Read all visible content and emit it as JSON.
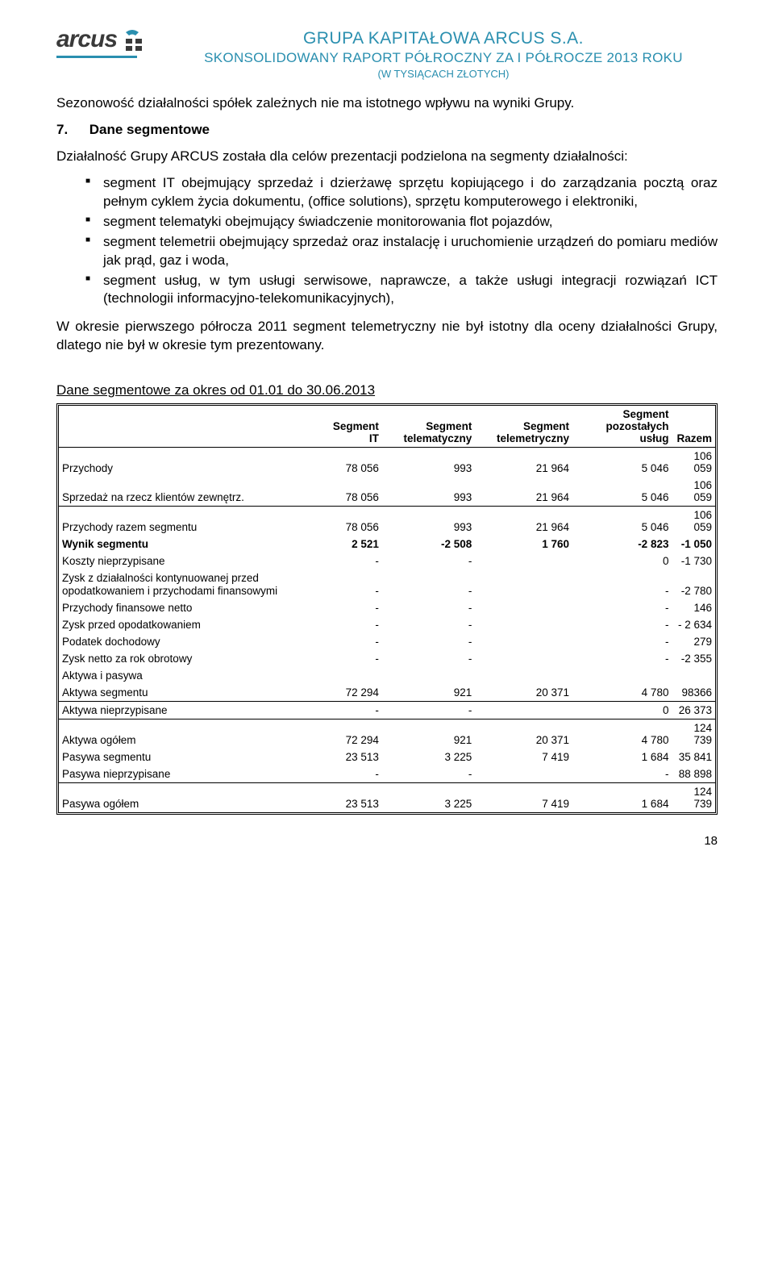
{
  "header": {
    "logo_text": "arcus",
    "line1": "GRUPA KAPITAŁOWA ARCUS S.A.",
    "line2": "SKONSOLIDOWANY RAPORT PÓŁROCZNY ZA I PÓŁROCZE 2013 ROKU",
    "line3": "(W TYSIĄCACH ZŁOTYCH)"
  },
  "intro_para": "Sezonowość działalności spółek zależnych nie ma istotnego wpływu na wyniki Grupy.",
  "section": {
    "num": "7.",
    "title": "Dane segmentowe",
    "lead": "Działalność Grupy ARCUS została dla celów prezentacji podzielona na segmenty działalności:",
    "bullets": [
      "segment IT obejmujący sprzedaż i dzierżawę sprzętu kopiującego i do zarządzania pocztą oraz pełnym cyklem życia dokumentu, (office solutions), sprzętu komputerowego i elektroniki,",
      "segment telematyki obejmujący świadczenie monitorowania flot pojazdów,",
      "segment telemetrii obejmujący sprzedaż oraz instalację i uruchomienie urządzeń do pomiaru mediów jak prąd, gaz i woda,",
      "segment usług, w tym usługi serwisowe, naprawcze, a także usługi integracji rozwiązań ICT (technologii informacyjno-telekomunikacyjnych),"
    ],
    "closing": "W okresie pierwszego półrocza 2011 segment telemetryczny nie był istotny dla oceny działalności Grupy, dlatego nie był w okresie tym prezentowany."
  },
  "table": {
    "title": "Dane segmentowe za okres od 01.01 do 30.06.2013",
    "columns": [
      "",
      "Segment IT",
      "Segment telematyczny",
      "Segment telemetryczny",
      "Segment pozostałych usług",
      "Razem"
    ],
    "rows": [
      {
        "label": "Przychody",
        "c": [
          "78 056",
          "993",
          "21 964",
          "5 046",
          "106 059"
        ],
        "border": false,
        "bold": false
      },
      {
        "label": "Sprzedaż na rzecz klientów zewnętrz.",
        "c": [
          "78 056",
          "993",
          "21 964",
          "5 046",
          "106 059"
        ],
        "border": true,
        "bold": false
      },
      {
        "label": "Przychody razem segmentu",
        "c": [
          "78 056",
          "993",
          "21 964",
          "5 046",
          "106 059"
        ],
        "border": false,
        "bold": false
      },
      {
        "label": "Wynik segmentu",
        "c": [
          "2 521",
          "-2 508",
          "1 760",
          "-2 823",
          "-1 050"
        ],
        "border": false,
        "bold": true
      },
      {
        "label": "Koszty nieprzypisane",
        "c": [
          "-",
          "-",
          "",
          "0",
          "-1 730"
        ],
        "border": false,
        "bold": false
      },
      {
        "label": "Zysk z działalności kontynuowanej przed opodatkowaniem i przychodami finansowymi",
        "c": [
          "-",
          "-",
          "",
          "-",
          "-2 780"
        ],
        "border": false,
        "bold": false,
        "multiline": true
      },
      {
        "label": "Przychody finansowe netto",
        "c": [
          "-",
          "-",
          "",
          "-",
          "146"
        ],
        "border": false,
        "bold": false
      },
      {
        "label": "Zysk przed opodatkowaniem",
        "c": [
          "-",
          "-",
          "",
          "-",
          "- 2 634"
        ],
        "border": false,
        "bold": false
      },
      {
        "label": "Podatek dochodowy",
        "c": [
          "-",
          "-",
          "",
          "-",
          "279"
        ],
        "border": false,
        "bold": false
      },
      {
        "label": "Zysk netto za rok obrotowy",
        "c": [
          "-",
          "-",
          "",
          "-",
          "-2 355"
        ],
        "border": false,
        "bold": false
      },
      {
        "label": "Aktywa i pasywa",
        "c": [
          "",
          "",
          "",
          "",
          ""
        ],
        "border": false,
        "bold": false
      },
      {
        "label": "Aktywa segmentu",
        "c": [
          "72 294",
          "921",
          "20 371",
          "4 780",
          "98366"
        ],
        "border": true,
        "bold": false
      },
      {
        "label": "Aktywa nieprzypisane",
        "c": [
          "-",
          "-",
          "",
          "0",
          "26 373"
        ],
        "border": true,
        "bold": false
      },
      {
        "label": "Aktywa ogółem",
        "c": [
          "72 294",
          "921",
          "20 371",
          "4 780",
          "124 739"
        ],
        "border": false,
        "bold": false
      },
      {
        "label": "Pasywa segmentu",
        "c": [
          "23 513",
          "3 225",
          "7 419",
          "1 684",
          "35 841"
        ],
        "border": false,
        "bold": false
      },
      {
        "label": "Pasywa nieprzypisane",
        "c": [
          "-",
          "-",
          "",
          "-",
          "88 898"
        ],
        "border": true,
        "bold": false
      },
      {
        "label": "Pasywa ogółem",
        "c": [
          "23 513",
          "3 225",
          "7 419",
          "1 684",
          "124 739"
        ],
        "border": false,
        "bold": false
      }
    ]
  },
  "page_number": "18"
}
